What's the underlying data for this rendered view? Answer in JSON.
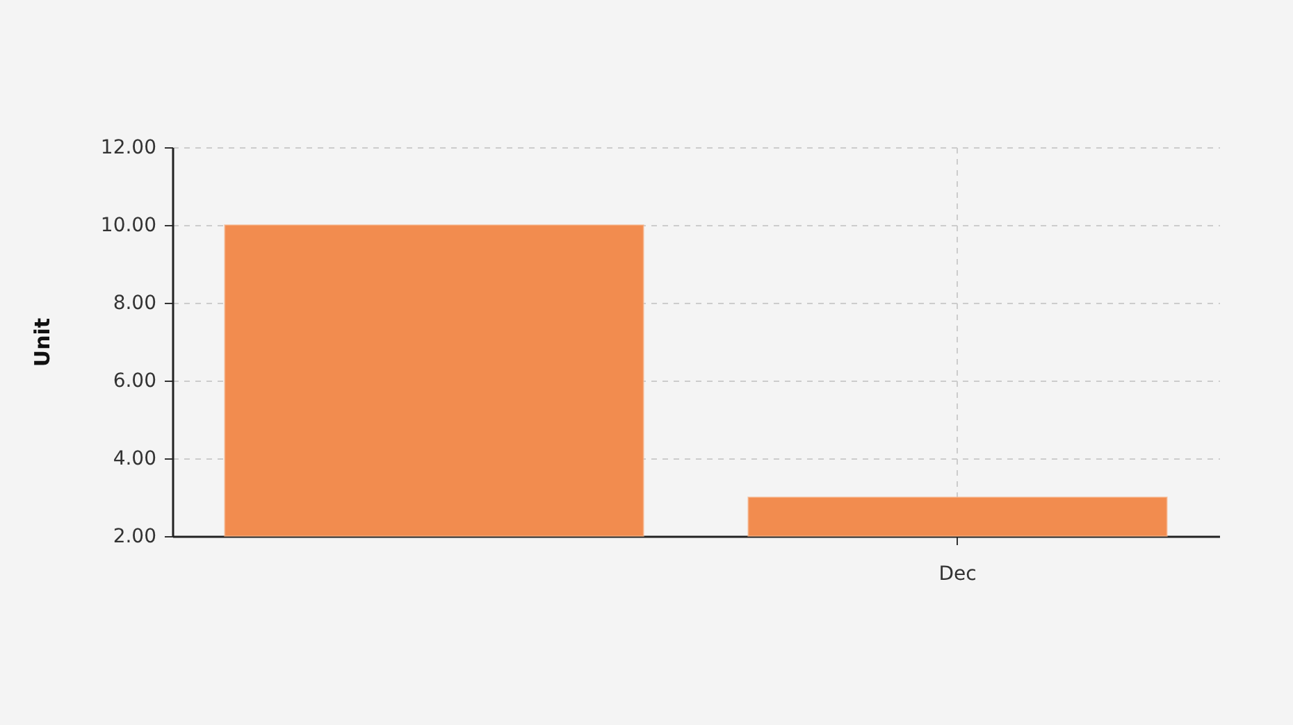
{
  "chart_data": {
    "type": "bar",
    "ylabel": "Unit",
    "categories": [
      null,
      "Dec"
    ],
    "values": [
      10,
      3
    ],
    "color": "#f28c4f",
    "ylim": [
      2,
      12
    ],
    "yticks": [
      {
        "value": 2,
        "label": "2.00"
      },
      {
        "value": 4,
        "label": "4.00"
      },
      {
        "value": 6,
        "label": "6.00"
      },
      {
        "value": 8,
        "label": "8.00"
      },
      {
        "value": 10,
        "label": "10.00"
      },
      {
        "value": 12,
        "label": "12.00"
      }
    ],
    "grid": true
  }
}
